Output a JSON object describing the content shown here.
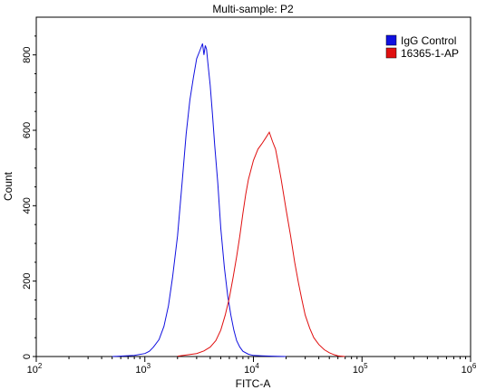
{
  "chart_data": {
    "type": "line",
    "title": "Multi-sample: P2",
    "xlabel": "FITC-A",
    "ylabel": "Count",
    "x_scale": "log",
    "xlim": [
      100,
      1000000
    ],
    "ylim": [
      0,
      900
    ],
    "x_ticks": [
      {
        "value": 100,
        "base": "10",
        "exp": "2"
      },
      {
        "value": 1000,
        "base": "10",
        "exp": "3"
      },
      {
        "value": 10000,
        "base": "10",
        "exp": "4"
      },
      {
        "value": 100000,
        "base": "10",
        "exp": "5"
      },
      {
        "value": 1000000,
        "base": "10",
        "exp": "6"
      }
    ],
    "y_ticks": [
      0,
      200,
      400,
      600,
      800
    ],
    "grid": false,
    "legend_position": "top-right",
    "series": [
      {
        "name": "IgG Control",
        "color": "#1010e0",
        "x": [
          500,
          800,
          1000,
          1100,
          1200,
          1350,
          1500,
          1650,
          1800,
          2000,
          2200,
          2400,
          2600,
          2800,
          3000,
          3200,
          3400,
          3500,
          3600,
          3700,
          3800,
          4000,
          4200,
          4400,
          4700,
          5000,
          5400,
          5800,
          6200,
          6600,
          7000,
          7500,
          8000,
          9000,
          10000,
          12000,
          15000,
          20000
        ],
        "y": [
          0,
          3,
          8,
          14,
          25,
          45,
          80,
          135,
          210,
          320,
          460,
          590,
          680,
          740,
          790,
          810,
          830,
          800,
          825,
          815,
          780,
          720,
          640,
          560,
          460,
          340,
          235,
          160,
          110,
          70,
          42,
          25,
          14,
          6,
          3,
          2,
          1,
          0
        ]
      },
      {
        "name": "16365-1-AP",
        "color": "#e01010",
        "x": [
          2000,
          3000,
          3500,
          4000,
          4500,
          5000,
          5500,
          6000,
          6500,
          7000,
          7500,
          8000,
          8500,
          9000,
          10000,
          11000,
          12000,
          13000,
          14000,
          15000,
          16000,
          17000,
          18000,
          20000,
          22000,
          24000,
          26000,
          28000,
          30000,
          33000,
          36000,
          40000,
          45000,
          50000,
          55000,
          60000,
          70000
        ],
        "y": [
          1,
          8,
          15,
          25,
          42,
          70,
          110,
          155,
          210,
          265,
          320,
          380,
          430,
          470,
          520,
          550,
          565,
          580,
          595,
          570,
          550,
          510,
          470,
          390,
          320,
          250,
          195,
          150,
          110,
          75,
          50,
          32,
          18,
          10,
          5,
          2,
          0
        ]
      }
    ]
  }
}
